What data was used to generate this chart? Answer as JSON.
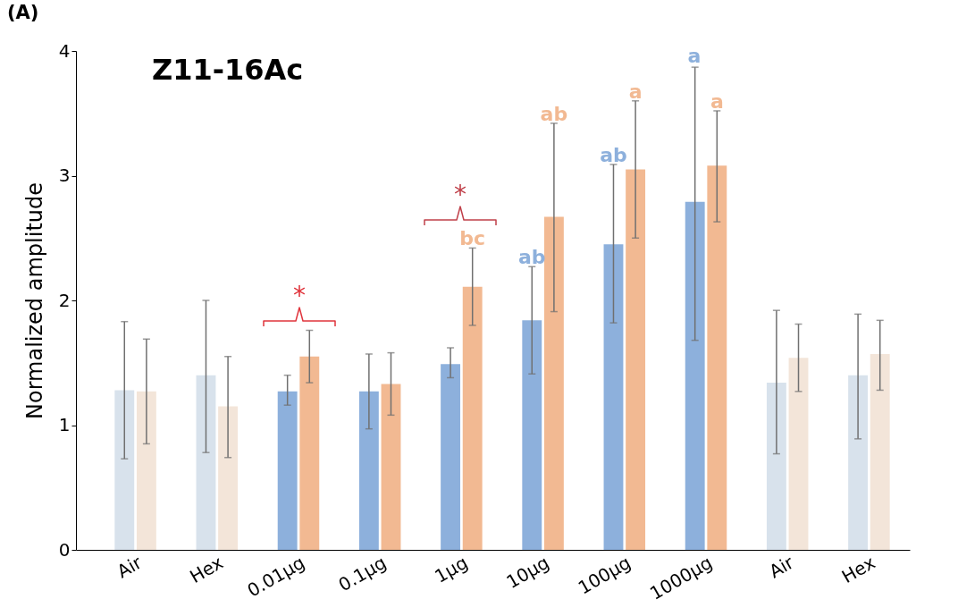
{
  "chart_data": {
    "type": "bar",
    "title": "Z11-16Ac",
    "ylabel": "Normalized amplitude",
    "categories": [
      "Air",
      "Hex",
      "0.01μg",
      "0.1μg",
      "1μg",
      "10μg",
      "100μg",
      "1000μg",
      "Air",
      "Hex"
    ],
    "ylim": [
      0,
      4
    ],
    "yticks": [
      0,
      1,
      2,
      3,
      4
    ],
    "series": [
      {
        "color": "#8db0dc",
        "colors": [
          "#d8e2ec",
          "#d8e2ec",
          "#8db0dc",
          "#8db0dc",
          "#8db0dc",
          "#8db0dc",
          "#8db0dc",
          "#8db0dc",
          "#d8e2ec",
          "#d8e2ec"
        ],
        "values": [
          1.28,
          1.4,
          1.27,
          1.27,
          1.49,
          1.84,
          2.45,
          2.79,
          1.34,
          1.4
        ],
        "errors": [
          [
            0.73,
            1.83
          ],
          [
            0.78,
            2.0
          ],
          [
            1.16,
            1.4
          ],
          [
            0.97,
            1.57
          ],
          [
            1.38,
            1.62
          ],
          [
            1.41,
            2.27
          ],
          [
            1.82,
            3.09
          ],
          [
            1.68,
            3.87
          ],
          [
            0.77,
            1.92
          ],
          [
            0.89,
            1.89
          ]
        ]
      },
      {
        "color": "#f2b992",
        "colors": [
          "#f3e5d9",
          "#f3e5d9",
          "#f2b992",
          "#f2b992",
          "#f2b992",
          "#f2b992",
          "#f2b992",
          "#f2b992",
          "#f3e5d9",
          "#f3e5d9"
        ],
        "values": [
          1.27,
          1.15,
          1.55,
          1.33,
          2.11,
          2.67,
          3.05,
          3.08,
          1.54,
          1.57
        ],
        "errors": [
          [
            0.85,
            1.69
          ],
          [
            0.74,
            1.55
          ],
          [
            1.34,
            1.76
          ],
          [
            1.08,
            1.58
          ],
          [
            1.8,
            2.42
          ],
          [
            1.91,
            3.42
          ],
          [
            2.5,
            3.6
          ],
          [
            2.63,
            3.52
          ],
          [
            1.27,
            1.81
          ],
          [
            1.28,
            1.84
          ]
        ]
      }
    ],
    "annotations": [
      "(A)",
      "*",
      "*",
      {
        "text": "ab",
        "x": "10μg",
        "y": 2.27
      },
      {
        "text": "ab",
        "x": "100μg",
        "y": 3.09
      },
      "a",
      {
        "text": "bc",
        "x": "1μg",
        "y": 2.42
      },
      {
        "text": "ab",
        "x": "10μg",
        "y": 3.42
      },
      {
        "text": "a",
        "x": "100μg",
        "y": 3.6
      },
      {
        "text": "a",
        "x": "1000μg",
        "y": 3.52
      }
    ]
  }
}
